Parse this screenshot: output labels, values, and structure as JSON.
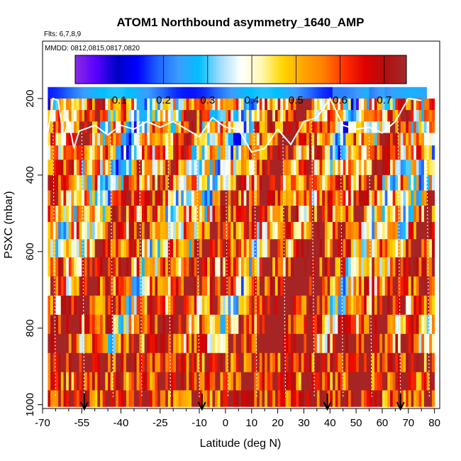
{
  "chart_data": {
    "type": "heatmap",
    "title": "ATOM1 Northbound asymmetry_1640_AMP",
    "flights_note": "Flts: 6,7,8,9",
    "dates_note": "MMDD: 0812,0815,0817,0820",
    "xlabel": "Latitude (deg N)",
    "ylabel": "PSXC (mbar)",
    "xlim": [
      -70,
      82
    ],
    "ylim": [
      1010,
      50
    ],
    "x_ticks": [
      -70,
      -55,
      -40,
      -25,
      -10,
      0,
      10,
      20,
      30,
      40,
      50,
      60,
      70,
      80
    ],
    "x_tick_labels": [
      "-70",
      "-55",
      "-40",
      "-25",
      "-10",
      "0",
      "10",
      "20",
      "30",
      "40",
      "50",
      "60",
      "70",
      "80"
    ],
    "x_minor_ticks": [
      -65,
      -60,
      -50,
      -45,
      -35,
      -30,
      -20,
      -15,
      -5,
      5,
      15,
      25,
      35,
      45,
      55,
      65,
      75
    ],
    "y_ticks": [
      200,
      400,
      600,
      800,
      1000
    ],
    "y_tick_labels": [
      "200",
      "400",
      "600",
      "800",
      "1000"
    ],
    "colorbar": {
      "range": [
        0,
        0.75
      ],
      "ticks": [
        0.1,
        0.2,
        0.3,
        0.4,
        0.5,
        0.6,
        0.7
      ],
      "tick_labels": [
        "0.1",
        "0.2",
        "0.3",
        "0.4",
        "0.5",
        "0.6",
        "0.7"
      ],
      "colors": [
        "#8a2be2",
        "#5a00ff",
        "#0000c8",
        "#0000ff",
        "#1e64ff",
        "#3c9cff",
        "#00bfff",
        "#a0dcff",
        "#ffffff",
        "#fff8b0",
        "#ffd700",
        "#ffa500",
        "#ff7f00",
        "#ff3000",
        "#e00000",
        "#b01010",
        "#a52a2a"
      ]
    },
    "pressure_levels": [
      185,
      215,
      245,
      275,
      305,
      340,
      380,
      420,
      460,
      500,
      545,
      590,
      640,
      690,
      740,
      790,
      840,
      890,
      940,
      985
    ],
    "lat_min": -68,
    "lat_max": 80,
    "lat_step": 1,
    "arrows_lat": [
      -54,
      -9,
      39,
      67
    ],
    "tropopause_lat": [
      -68,
      -66,
      -64,
      -62,
      -60,
      -58,
      -56,
      -50,
      -45,
      -40,
      -35,
      -30,
      -25,
      -20,
      -15,
      -10,
      -5,
      0,
      5,
      10,
      15,
      20,
      25,
      30,
      35,
      40,
      45,
      50,
      55,
      60,
      65,
      70,
      75
    ],
    "tropopause_p": [
      290,
      200,
      205,
      300,
      260,
      330,
      285,
      270,
      295,
      270,
      280,
      260,
      275,
      260,
      280,
      300,
      250,
      275,
      280,
      340,
      330,
      280,
      320,
      260,
      250,
      200,
      270,
      280,
      275,
      290,
      260,
      200,
      205
    ]
  }
}
